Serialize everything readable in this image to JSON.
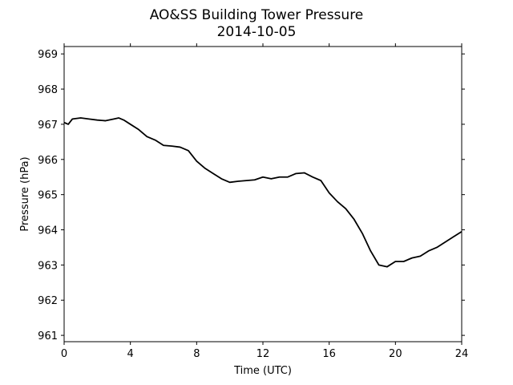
{
  "chart_data": {
    "type": "line",
    "title": "AO&SS Building Tower Pressure",
    "subtitle": "2014-10-05",
    "x_label": "Time (UTC)",
    "y_label": "Pressure (hPa)",
    "xlim": [
      0,
      24
    ],
    "xticks": [
      0,
      4,
      8,
      12,
      16,
      20,
      24
    ],
    "ylim": [
      960.82,
      969.21
    ],
    "yticks": [
      961,
      962,
      963,
      964,
      965,
      966,
      967,
      968,
      969
    ],
    "x": [
      0,
      0.25,
      0.5,
      1,
      1.5,
      2,
      2.5,
      3,
      3.3,
      3.6,
      4,
      4.5,
      5,
      5.5,
      6,
      6.5,
      7,
      7.5,
      8,
      8.5,
      9,
      9.5,
      10,
      10.5,
      11,
      11.5,
      12,
      12.5,
      13,
      13.5,
      14,
      14.5,
      15,
      15.5,
      16,
      16.5,
      17,
      17.5,
      18,
      18.5,
      19,
      19.5,
      20,
      20.5,
      21,
      21.5,
      22,
      22.5,
      23,
      23.5,
      24
    ],
    "series": [
      {
        "name": "Pressure",
        "color": "#000000",
        "values": [
          967.05,
          967.0,
          967.15,
          967.18,
          967.15,
          967.12,
          967.1,
          967.15,
          967.18,
          967.12,
          967.0,
          966.85,
          966.65,
          966.55,
          966.4,
          966.38,
          966.35,
          966.25,
          965.95,
          965.75,
          965.6,
          965.45,
          965.35,
          965.38,
          965.4,
          965.42,
          965.5,
          965.45,
          965.5,
          965.5,
          965.6,
          965.62,
          965.5,
          965.4,
          965.05,
          964.8,
          964.6,
          964.3,
          963.9,
          963.4,
          963.0,
          962.95,
          963.1,
          963.1,
          963.2,
          963.25,
          963.4,
          963.5,
          963.65,
          963.8,
          963.95
        ]
      }
    ]
  }
}
